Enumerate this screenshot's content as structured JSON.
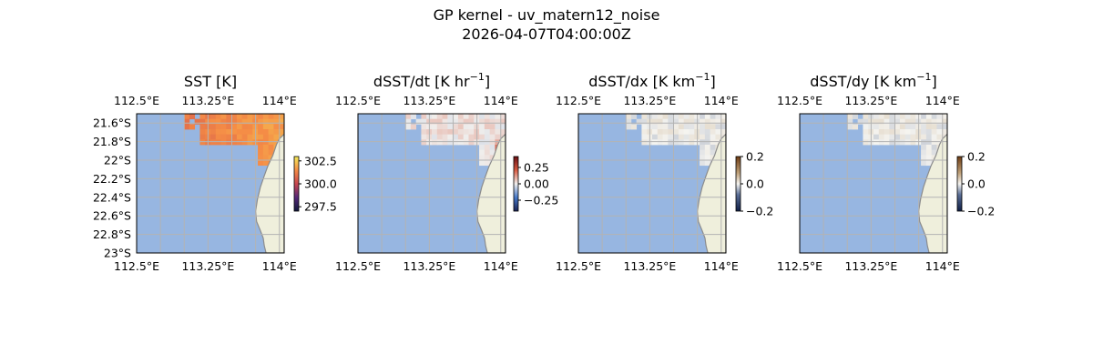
{
  "figure": {
    "title_line1": "GP kernel - uv_matern12_noise",
    "title_line2": "2026-04-07T04:00:00Z"
  },
  "colors": {
    "ocean": "#97b6e1",
    "land": "#efefdc",
    "coast": "#8c8c8c",
    "grid": "#b3b3b3"
  },
  "chart_data": [
    {
      "type": "heatmap",
      "title": "SST [K]",
      "title_base": "SST [K]",
      "title_sup": "",
      "title_tail": "",
      "xlim": [
        112.5,
        114.05
      ],
      "ylim": [
        -23.0,
        -21.5
      ],
      "top_ticks": [
        "112.5°E",
        "113.25°E",
        "114°E"
      ],
      "bottom_ticks": [
        "112.5°E",
        "113.25°E",
        "114°E"
      ],
      "left_ticks": [
        "21.6°S",
        "21.8°S",
        "22°S",
        "22.2°S",
        "22.4°S",
        "22.6°S",
        "22.8°S",
        "23°S"
      ],
      "colorbar": {
        "cmap": "thermal",
        "ticks": [
          "302.5",
          "300.0",
          "297.5"
        ],
        "range": [
          296.5,
          303.5
        ]
      },
      "field": "sst"
    },
    {
      "type": "heatmap",
      "title": "dSST/dt [K hr−1]",
      "title_base": "dSST/dt [K hr",
      "title_sup": "−1",
      "title_tail": "]",
      "xlim": [
        112.5,
        114.05
      ],
      "ylim": [
        -23.0,
        -21.5
      ],
      "top_ticks": [
        "112.5°E",
        "113.25°E",
        "114°E"
      ],
      "bottom_ticks": [
        "112.5°E",
        "113.25°E",
        "114°E"
      ],
      "left_ticks": [],
      "colorbar": {
        "cmap": "balance",
        "ticks": [
          "0.25",
          "0.00",
          "−0.25"
        ],
        "range": [
          -0.42,
          0.42
        ]
      },
      "field": "dt"
    },
    {
      "type": "heatmap",
      "title": "dSST/dx [K km−1]",
      "title_base": "dSST/dx [K km",
      "title_sup": "−1",
      "title_tail": "]",
      "xlim": [
        112.5,
        114.05
      ],
      "ylim": [
        -23.0,
        -21.5
      ],
      "top_ticks": [
        "112.5°E",
        "113.25°E",
        "114°E"
      ],
      "bottom_ticks": [
        "112.5°E",
        "113.25°E",
        "114°E"
      ],
      "left_ticks": [],
      "colorbar": {
        "cmap": "diff",
        "ticks": [
          "0.2",
          "0.0",
          "−0.2"
        ],
        "range": [
          -0.2,
          0.2
        ]
      },
      "field": "dx"
    },
    {
      "type": "heatmap",
      "title": "dSST/dy [K km−1]",
      "title_base": "dSST/dy [K km",
      "title_sup": "−1",
      "title_tail": "]",
      "xlim": [
        112.5,
        114.05
      ],
      "ylim": [
        -23.0,
        -21.5
      ],
      "top_ticks": [
        "112.5°E",
        "113.25°E",
        "114°E"
      ],
      "bottom_ticks": [
        "112.5°E",
        "113.25°E",
        "114°E"
      ],
      "left_ticks": [],
      "colorbar": {
        "cmap": "diff",
        "ticks": [
          "0.2",
          "0.0",
          "−0.2"
        ],
        "range": [
          -0.2,
          0.2
        ]
      },
      "field": "dy"
    }
  ]
}
